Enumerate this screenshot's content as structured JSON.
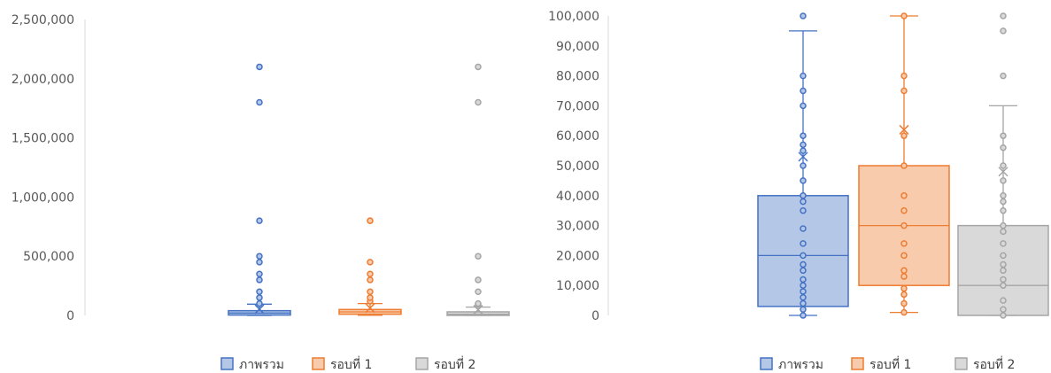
{
  "chart_data": [
    {
      "type": "box",
      "title": "",
      "xlabel": "",
      "ylabel": "",
      "ylim": [
        0,
        2500000
      ],
      "yticks": [
        0,
        500000,
        1000000,
        1500000,
        2000000,
        2500000
      ],
      "ytick_labels": [
        "0",
        "500,000",
        "1,000,000",
        "1,500,000",
        "2,000,000",
        "2,500,000"
      ],
      "legend": "bottom",
      "grid": false,
      "series": [
        {
          "name": "ภาพรวม",
          "color": "#4472C4",
          "fill": "#B4C7E7",
          "min": 0,
          "q1": 3000,
          "median": 20000,
          "q3": 40000,
          "max": 95000,
          "mean": 53000,
          "outliers": [
            100000,
            150000,
            200000,
            300000,
            350000,
            450000,
            500000,
            800000,
            1800000,
            2100000
          ]
        },
        {
          "name": "รอบที่ 1",
          "color": "#ED7D31",
          "fill": "#F8CBAD",
          "min": 1000,
          "q1": 10000,
          "median": 30000,
          "q3": 50000,
          "max": 100000,
          "mean": 62000,
          "outliers": [
            120000,
            150000,
            200000,
            300000,
            350000,
            450000,
            800000,
            800000
          ]
        },
        {
          "name": "รอบที่ 2",
          "color": "#A5A5A5",
          "fill": "#D9D9D9",
          "min": 0,
          "q1": 0,
          "median": 10000,
          "q3": 30000,
          "max": 70000,
          "mean": 48000,
          "outliers": [
            80000,
            95000,
            100000,
            200000,
            300000,
            500000,
            1800000,
            2100000
          ]
        }
      ]
    },
    {
      "type": "box",
      "title": "",
      "xlabel": "",
      "ylabel": "",
      "ylim": [
        0,
        100000
      ],
      "yticks": [
        0,
        10000,
        20000,
        30000,
        40000,
        50000,
        60000,
        70000,
        80000,
        90000,
        100000
      ],
      "ytick_labels": [
        "0",
        "10,000",
        "20,000",
        "30,000",
        "40,000",
        "50,000",
        "60,000",
        "70,000",
        "80,000",
        "90,000",
        "100,000"
      ],
      "legend": "bottom",
      "grid": false,
      "series": [
        {
          "name": "ภาพรวม",
          "color": "#4472C4",
          "fill": "#B4C7E7",
          "min": 0,
          "q1": 3000,
          "median": 20000,
          "q3": 40000,
          "max": 95000,
          "mean": 53000,
          "points": [
            0,
            2000,
            4000,
            6000,
            8000,
            10000,
            12000,
            15000,
            17000,
            20000,
            24000,
            29000,
            35000,
            38000,
            40000,
            45000,
            50000,
            55000,
            57000,
            60000,
            70000,
            75000,
            80000,
            100000
          ]
        },
        {
          "name": "รอบที่ 1",
          "color": "#ED7D31",
          "fill": "#F8CBAD",
          "min": 1000,
          "q1": 10000,
          "median": 30000,
          "q3": 50000,
          "max": 100000,
          "mean": 62000,
          "points": [
            1000,
            4000,
            7000,
            9000,
            13000,
            15000,
            20000,
            24000,
            30000,
            35000,
            40000,
            50000,
            60000,
            75000,
            80000,
            100000
          ]
        },
        {
          "name": "รอบที่ 2",
          "color": "#A5A5A5",
          "fill": "#D9D9D9",
          "min": 0,
          "q1": 0,
          "median": 10000,
          "q3": 30000,
          "max": 70000,
          "mean": 48000,
          "points": [
            0,
            2000,
            5000,
            10000,
            12000,
            15000,
            17000,
            20000,
            24000,
            28000,
            30000,
            35000,
            38000,
            40000,
            45000,
            50000,
            56000,
            60000,
            80000,
            95000,
            100000
          ]
        }
      ]
    }
  ]
}
